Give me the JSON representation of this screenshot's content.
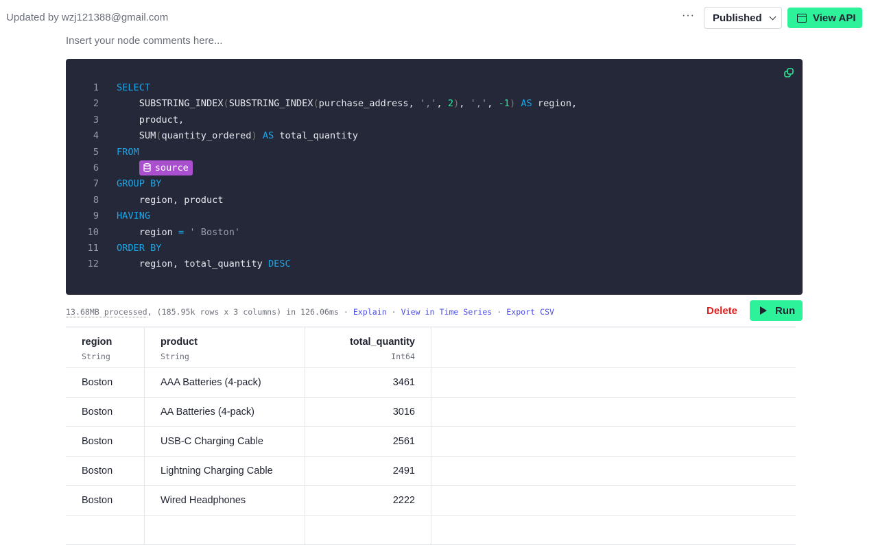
{
  "header": {
    "updated_by": "Updated by wzj121388@gmail.com",
    "more_label": "···",
    "status_select": "Published",
    "view_api_label": "View API"
  },
  "comments_placeholder": "Insert your node comments here...",
  "colors": {
    "accent": "#2ef29a",
    "editor_bg": "#252839",
    "keyword": "#1aa7e8",
    "number": "#2ee89a",
    "source_tag": "#a94fcf",
    "delete": "#e0201e",
    "link": "#4a4de6"
  },
  "code": [
    [
      [
        "kw",
        "SELECT"
      ]
    ],
    [
      [
        "t",
        "    SUBSTRING_INDEX"
      ],
      [
        "paren",
        "("
      ],
      [
        "t",
        "SUBSTRING_INDEX"
      ],
      [
        "paren",
        "("
      ],
      [
        "t",
        "purchase_address, "
      ],
      [
        "str",
        "','"
      ],
      [
        "t",
        ", "
      ],
      [
        "num",
        "2"
      ],
      [
        "paren",
        ")"
      ],
      [
        "t",
        ", "
      ],
      [
        "str",
        "','"
      ],
      [
        "t",
        ", "
      ],
      [
        "num",
        "-1"
      ],
      [
        "paren",
        ")"
      ],
      [
        "t",
        " "
      ],
      [
        "kw",
        "AS"
      ],
      [
        "t",
        " region,"
      ]
    ],
    [
      [
        "t",
        "    product,"
      ]
    ],
    [
      [
        "t",
        "    SUM"
      ],
      [
        "paren",
        "("
      ],
      [
        "t",
        "quantity_ordered"
      ],
      [
        "paren",
        ")"
      ],
      [
        "t",
        " "
      ],
      [
        "kw",
        "AS"
      ],
      [
        "t",
        " total_quantity"
      ]
    ],
    [
      [
        "kw",
        "FROM"
      ]
    ],
    [
      [
        "t",
        "    "
      ],
      [
        "src",
        "source"
      ]
    ],
    [
      [
        "kw",
        "GROUP BY"
      ]
    ],
    [
      [
        "t",
        "    region, product"
      ]
    ],
    [
      [
        "kw",
        "HAVING"
      ]
    ],
    [
      [
        "t",
        "    region "
      ],
      [
        "op",
        "="
      ],
      [
        "t",
        " "
      ],
      [
        "str",
        "' Boston'"
      ]
    ],
    [
      [
        "kw",
        "ORDER BY"
      ]
    ],
    [
      [
        "t",
        "    region, total_quantity "
      ],
      [
        "kw",
        "DESC"
      ]
    ]
  ],
  "status": {
    "processed": "13.68MB processed",
    "details": ", (185.95k rows x 3 columns) in 126.06ms",
    "sep": " · ",
    "explain": "Explain",
    "time_series": "View in Time Series",
    "export": "Export CSV"
  },
  "actions": {
    "delete": "Delete",
    "run": "Run"
  },
  "table": {
    "columns": [
      {
        "name": "region",
        "type": "String"
      },
      {
        "name": "product",
        "type": "String"
      },
      {
        "name": "total_quantity",
        "type": "Int64"
      }
    ],
    "rows": [
      [
        "Boston",
        "AAA Batteries (4-pack)",
        "3461"
      ],
      [
        "Boston",
        "AA Batteries (4-pack)",
        "3016"
      ],
      [
        "Boston",
        "USB-C Charging Cable",
        "2561"
      ],
      [
        "Boston",
        "Lightning Charging Cable",
        "2491"
      ],
      [
        "Boston",
        "Wired Headphones",
        "2222"
      ]
    ]
  }
}
